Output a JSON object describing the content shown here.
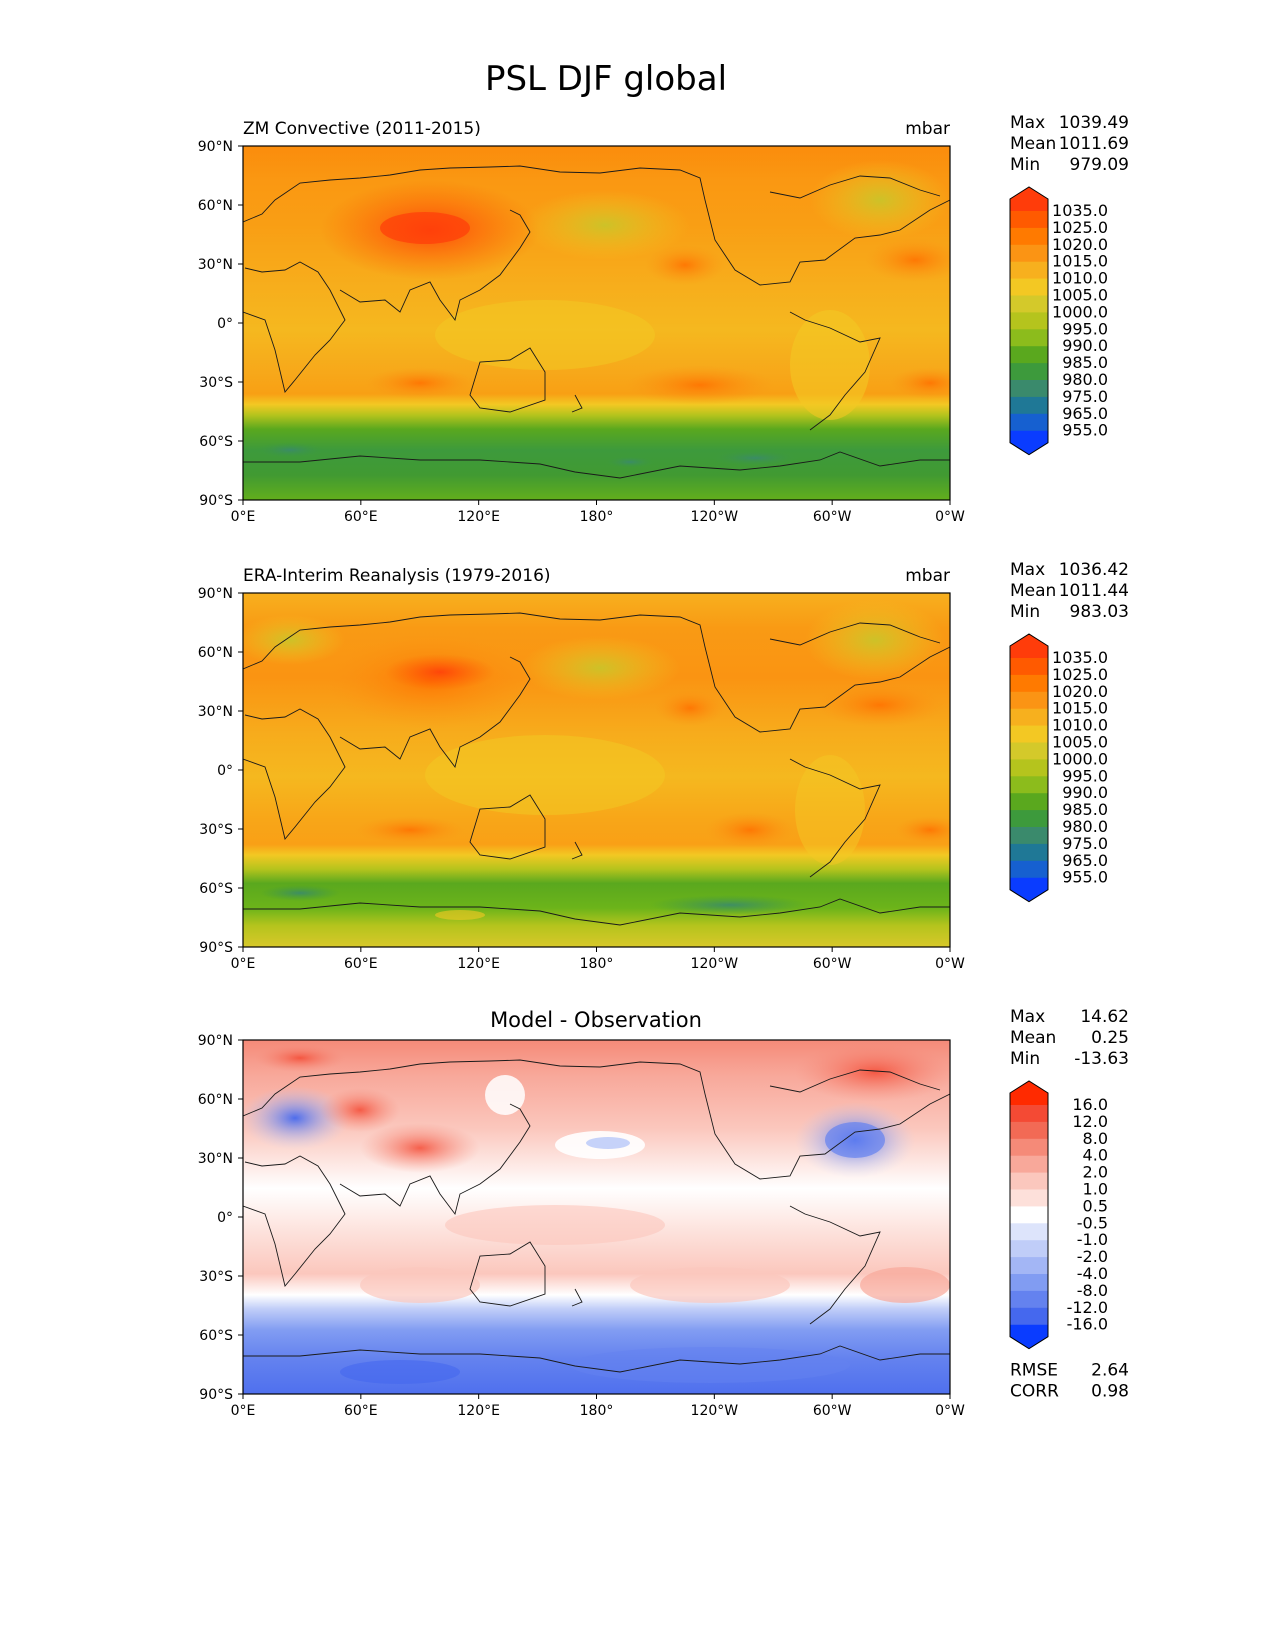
{
  "figure": {
    "title": "PSL DJF global"
  },
  "axes": {
    "x_tick_labels": [
      "0°E",
      "60°E",
      "120°E",
      "180°",
      "120°W",
      "60°W",
      "0°W"
    ],
    "y_tick_labels": [
      "90°N",
      "60°N",
      "30°N",
      "0°",
      "30°S",
      "60°S",
      "90°S"
    ]
  },
  "panels": [
    {
      "id": "test",
      "title_left": "ZM Convective (2011-2015)",
      "title_center": "",
      "units": "mbar",
      "stats": [
        {
          "label": "Max",
          "value": "1039.49"
        },
        {
          "label": "Mean",
          "value": "1011.69"
        },
        {
          "label": "Min",
          "value": "979.09"
        }
      ],
      "colorbar": [
        "1035.0",
        "1025.0",
        "1020.0",
        "1015.0",
        "1010.0",
        "1005.0",
        "1000.0",
        "995.0",
        "990.0",
        "985.0",
        "980.0",
        "975.0",
        "965.0",
        "955.0"
      ],
      "colors": [
        "#ff3c0a",
        "#ff5a00",
        "#ff7a00",
        "#fb9414",
        "#f7b01e",
        "#f3c823",
        "#d4c92a",
        "#b5c41d",
        "#8cbc1c",
        "#5aa81e",
        "#3d9a3c",
        "#3a8a6c",
        "#1f7896",
        "#1660d0",
        "#0a3cff"
      ],
      "extra_stats": []
    },
    {
      "id": "reference",
      "title_left": "ERA-Interim Reanalysis (1979-2016)",
      "title_center": "",
      "units": "mbar",
      "stats": [
        {
          "label": "Max",
          "value": "1036.42"
        },
        {
          "label": "Mean",
          "value": "1011.44"
        },
        {
          "label": "Min",
          "value": "983.03"
        }
      ],
      "colorbar": [
        "1035.0",
        "1025.0",
        "1020.0",
        "1015.0",
        "1010.0",
        "1005.0",
        "1000.0",
        "995.0",
        "990.0",
        "985.0",
        "980.0",
        "975.0",
        "965.0",
        "955.0"
      ],
      "colors": [
        "#ff3c0a",
        "#ff5a00",
        "#ff7a00",
        "#fb9414",
        "#f7b01e",
        "#f3c823",
        "#d4c92a",
        "#b5c41d",
        "#8cbc1c",
        "#5aa81e",
        "#3d9a3c",
        "#3a8a6c",
        "#1f7896",
        "#1660d0",
        "#0a3cff"
      ],
      "extra_stats": []
    },
    {
      "id": "difference",
      "title_left": "",
      "title_center": "Model - Observation",
      "units": "",
      "stats": [
        {
          "label": "Max",
          "value": "14.62"
        },
        {
          "label": "Mean",
          "value": "0.25"
        },
        {
          "label": "Min",
          "value": "-13.63"
        }
      ],
      "colorbar": [
        "16.0",
        "12.0",
        "8.0",
        "4.0",
        "2.0",
        "1.0",
        "0.5",
        "-0.5",
        "-1.0",
        "-2.0",
        "-4.0",
        "-8.0",
        "-12.0",
        "-16.0"
      ],
      "colors": [
        "#ff2a00",
        "#f44a34",
        "#f26a55",
        "#f58a78",
        "#f8a89a",
        "#fbc7bd",
        "#fde0da",
        "#ffffff",
        "#dde4fb",
        "#c0cdf8",
        "#a3b6f5",
        "#819cf2",
        "#6482ef",
        "#4568ee",
        "#0a3cff"
      ],
      "extra_stats": [
        {
          "label": "RMSE",
          "value": "2.64"
        },
        {
          "label": "CORR",
          "value": "0.98"
        }
      ]
    }
  ]
}
